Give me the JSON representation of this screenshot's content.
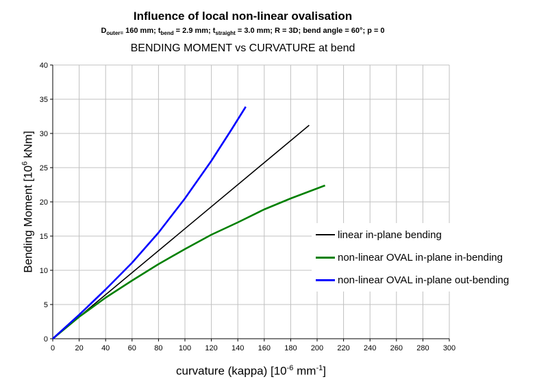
{
  "chart_data": {
    "type": "line",
    "title": "Influence of local non-linear ovalisation",
    "subtitle_parts": [
      "D",
      "outer=",
      " 160 mm; t",
      "bend",
      " = 2.9 mm;  t",
      "straight",
      " = 3.0 mm; R = 3D; bend angle = 60°; p = 0"
    ],
    "title2": "BENDING MOMENT vs CURVATURE at bend",
    "xlabel": {
      "pre": "curvature (kappa) [10",
      "sup1": "-6",
      "mid": " mm",
      "sup2": "-1",
      "post": "]"
    },
    "ylabel": {
      "pre": "Bending Moment [10",
      "sup": "6",
      "post": " kNm]"
    },
    "xlim": [
      0,
      300
    ],
    "ylim": [
      0,
      40
    ],
    "xticks": [
      0,
      20,
      40,
      60,
      80,
      100,
      120,
      140,
      160,
      180,
      200,
      220,
      240,
      260,
      280,
      300
    ],
    "yticks": [
      0,
      5,
      10,
      15,
      20,
      25,
      30,
      35,
      40
    ],
    "grid": true,
    "legend_position": "right",
    "series": [
      {
        "name": "linear in-plane bending",
        "color": "#000000",
        "x": [
          0,
          194
        ],
        "y": [
          0,
          31.2
        ]
      },
      {
        "name": "non-linear OVAL in-plane in-bending",
        "color": "#008000",
        "x": [
          0,
          20,
          40,
          60,
          80,
          100,
          120,
          140,
          160,
          180,
          206
        ],
        "y": [
          0,
          3.2,
          6.0,
          8.5,
          10.9,
          13.1,
          15.2,
          17.0,
          18.9,
          20.5,
          22.4
        ]
      },
      {
        "name": "non-linear OVAL in-plane out-bending",
        "color": "#0000ff",
        "x": [
          0,
          20,
          40,
          60,
          80,
          100,
          120,
          135,
          146
        ],
        "y": [
          0,
          3.5,
          7.2,
          11.1,
          15.5,
          20.5,
          26.0,
          30.5,
          33.9
        ]
      }
    ]
  }
}
